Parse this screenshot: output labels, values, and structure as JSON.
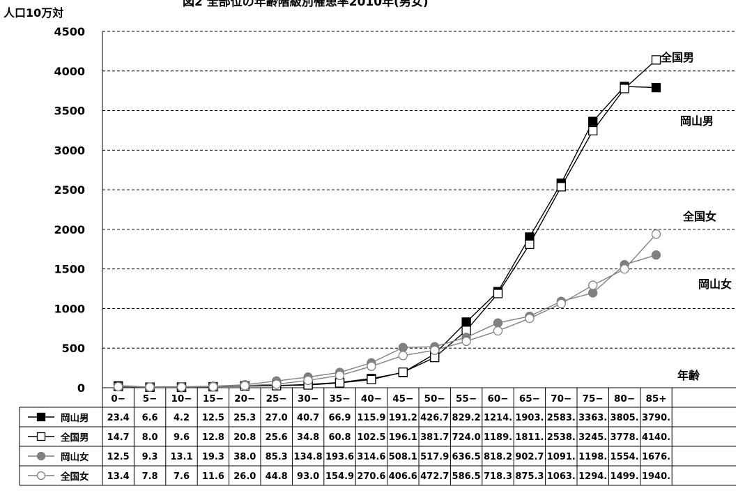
{
  "chart_data": {
    "type": "line",
    "title": "図2 全部位の年齢階級別罹患率2010年(男女)",
    "ylabel": "人口10万対",
    "xlabel": "年齢",
    "ylim": [
      0,
      4500
    ],
    "yticks": [
      0,
      500,
      1000,
      1500,
      2000,
      2500,
      3000,
      3500,
      4000,
      4500
    ],
    "categories": [
      "0−",
      "5−",
      "10−",
      "15−",
      "20−",
      "25−",
      "30−",
      "35−",
      "40−",
      "45−",
      "50−",
      "55−",
      "60−",
      "65−",
      "70−",
      "75−",
      "80−",
      "85+"
    ],
    "grid": "horizontal dashed",
    "series": [
      {
        "name": "岡山男",
        "marker": "filled-square",
        "color": "#000000",
        "values": [
          23.4,
          6.6,
          4.2,
          12.5,
          25.3,
          27.0,
          40.7,
          66.9,
          115.9,
          191.2,
          426.7,
          829.2,
          1214.0,
          1903.0,
          2583.0,
          3363.0,
          3805.0,
          3790.0
        ],
        "table": [
          "23.4",
          "6.6",
          "4.2",
          "12.5",
          "25.3",
          "27.0",
          "40.7",
          "66.9",
          "115.9",
          "191.2",
          "426.7",
          "829.2",
          "1214.",
          "1903.",
          "2583.",
          "3363.",
          "3805.",
          "3790."
        ]
      },
      {
        "name": "全国男",
        "marker": "open-square",
        "color": "#000000",
        "values": [
          14.7,
          8.0,
          9.6,
          12.8,
          20.8,
          25.6,
          34.8,
          60.8,
          102.5,
          196.1,
          381.7,
          724.0,
          1189.0,
          1811.0,
          2538.0,
          3245.0,
          3778.0,
          4140.0
        ],
        "table": [
          "14.7",
          "8.0",
          "9.6",
          "12.8",
          "20.8",
          "25.6",
          "34.8",
          "60.8",
          "102.5",
          "196.1",
          "381.7",
          "724.0",
          "1189.",
          "1811.",
          "2538.",
          "3245.",
          "3778.",
          "4140."
        ]
      },
      {
        "name": "岡山女",
        "marker": "filled-circle",
        "color": "#808080",
        "values": [
          12.5,
          9.3,
          13.1,
          19.3,
          38.0,
          85.3,
          134.8,
          193.6,
          314.6,
          508.1,
          517.9,
          636.5,
          818.2,
          902.7,
          1091.0,
          1198.0,
          1554.0,
          1676.0
        ],
        "table": [
          "12.5",
          "9.3",
          "13.1",
          "19.3",
          "38.0",
          "85.3",
          "134.8",
          "193.6",
          "314.6",
          "508.1",
          "517.9",
          "636.5",
          "818.2",
          "902.7",
          "1091.",
          "1198.",
          "1554.",
          "1676."
        ]
      },
      {
        "name": "全国女",
        "marker": "open-circle",
        "color": "#808080",
        "values": [
          13.4,
          7.8,
          7.6,
          11.6,
          26.0,
          44.8,
          93.0,
          154.9,
          270.6,
          406.6,
          472.7,
          586.5,
          718.3,
          875.3,
          1063.0,
          1294.0,
          1499.0,
          1940.0
        ],
        "table": [
          "13.4",
          "7.8",
          "7.6",
          "11.6",
          "26.0",
          "44.8",
          "93.0",
          "154.9",
          "270.6",
          "406.6",
          "472.7",
          "586.5",
          "718.3",
          "875.3",
          "1063.",
          "1294.",
          "1499.",
          "1940."
        ]
      }
    ],
    "annotations": [
      "全国男",
      "岡山男",
      "全国女",
      "岡山女"
    ]
  }
}
